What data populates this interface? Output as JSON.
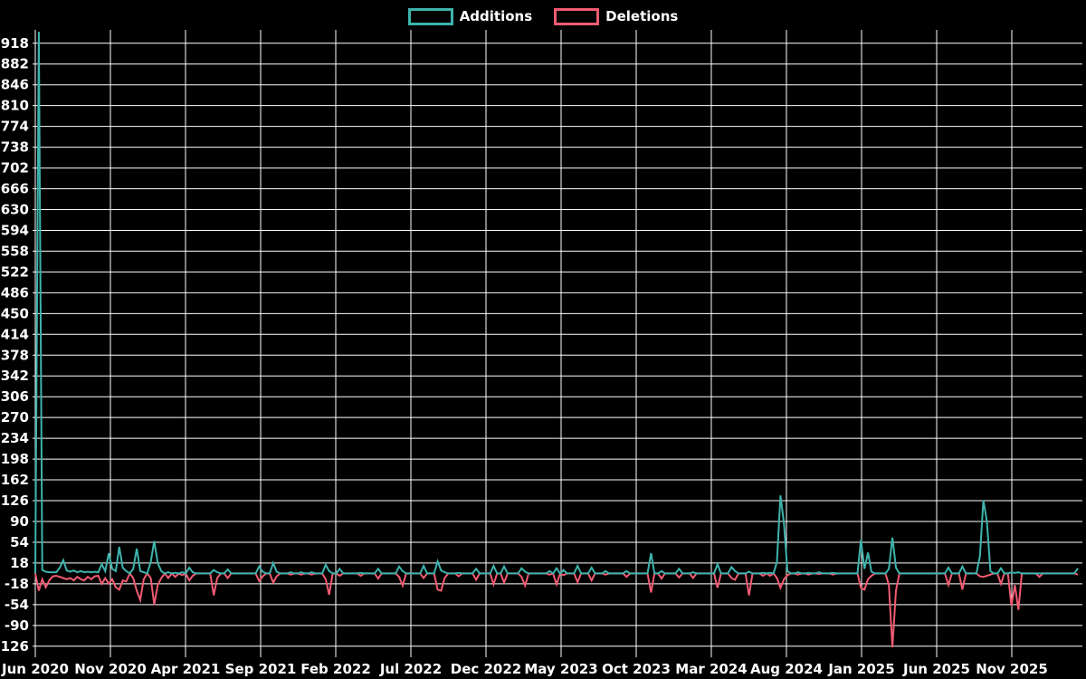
{
  "legend": {
    "additions_label": "Additions",
    "deletions_label": "Deletions"
  },
  "colors": {
    "background": "#000000",
    "grid": "#ffffff",
    "text": "#ffffff",
    "additions": "#3eb3ad",
    "deletions": "#f05b72"
  },
  "chart_data": {
    "type": "line",
    "title": "",
    "xlabel": "",
    "ylabel": "",
    "legend_position": "top",
    "grid": true,
    "x_axis": {
      "unit": "months, weekly data points",
      "start": "Jun 2020",
      "end": "Nov 2025",
      "tick_labels": [
        "Jun 2020",
        "Nov 2020",
        "Apr 2021",
        "Sep 2021",
        "Feb 2022",
        "Jul 2022",
        "Dec 2022",
        "May 2023",
        "Oct 2023",
        "Mar 2024",
        "Aug 2024",
        "Jan 2025",
        "Jun 2025",
        "Nov 2025"
      ]
    },
    "y_axis": {
      "min": -126,
      "max": 918,
      "step": 36,
      "tick_labels": [
        918,
        882,
        846,
        810,
        774,
        738,
        702,
        666,
        630,
        594,
        558,
        522,
        486,
        450,
        414,
        378,
        342,
        306,
        270,
        234,
        198,
        162,
        126,
        90,
        54,
        18,
        -18,
        -54,
        -90,
        -126
      ]
    },
    "weeks_total": 299,
    "default_value": 0,
    "series": [
      {
        "name": "Additions",
        "color": "#3eb3ad",
        "points": [
          [
            1,
            938
          ],
          [
            2,
            6
          ],
          [
            3,
            3
          ],
          [
            4,
            2
          ],
          [
            5,
            2
          ],
          [
            6,
            2
          ],
          [
            7,
            10
          ],
          [
            8,
            23
          ],
          [
            9,
            5
          ],
          [
            10,
            3
          ],
          [
            11,
            5
          ],
          [
            12,
            2
          ],
          [
            13,
            4
          ],
          [
            14,
            2
          ],
          [
            15,
            3
          ],
          [
            16,
            2
          ],
          [
            17,
            3
          ],
          [
            18,
            2
          ],
          [
            19,
            16
          ],
          [
            20,
            4
          ],
          [
            21,
            35
          ],
          [
            22,
            8
          ],
          [
            23,
            4
          ],
          [
            24,
            46
          ],
          [
            25,
            10
          ],
          [
            26,
            4
          ],
          [
            28,
            8
          ],
          [
            29,
            43
          ],
          [
            30,
            4
          ],
          [
            31,
            2
          ],
          [
            33,
            20
          ],
          [
            34,
            56
          ],
          [
            35,
            18
          ],
          [
            36,
            4
          ],
          [
            38,
            2
          ],
          [
            40,
            1
          ],
          [
            42,
            2
          ],
          [
            44,
            10
          ],
          [
            45,
            2
          ],
          [
            51,
            6
          ],
          [
            52,
            2
          ],
          [
            55,
            7
          ],
          [
            64,
            12
          ],
          [
            65,
            3
          ],
          [
            68,
            18
          ],
          [
            69,
            3
          ],
          [
            73,
            2
          ],
          [
            76,
            2
          ],
          [
            79,
            2
          ],
          [
            83,
            15
          ],
          [
            84,
            4
          ],
          [
            87,
            8
          ],
          [
            93,
            1
          ],
          [
            98,
            8
          ],
          [
            104,
            12
          ],
          [
            105,
            4
          ],
          [
            111,
            13
          ],
          [
            115,
            21
          ],
          [
            116,
            5
          ],
          [
            117,
            2
          ],
          [
            121,
            1
          ],
          [
            126,
            8
          ],
          [
            131,
            13
          ],
          [
            134,
            12
          ],
          [
            139,
            9
          ],
          [
            140,
            3
          ],
          [
            147,
            4
          ],
          [
            149,
            9
          ],
          [
            151,
            6
          ],
          [
            155,
            13
          ],
          [
            159,
            10
          ],
          [
            163,
            4
          ],
          [
            169,
            4
          ],
          [
            176,
            35
          ],
          [
            179,
            4
          ],
          [
            184,
            8
          ],
          [
            188,
            2
          ],
          [
            195,
            16
          ],
          [
            199,
            11
          ],
          [
            200,
            4
          ],
          [
            204,
            3
          ],
          [
            208,
            1
          ],
          [
            210,
            1
          ],
          [
            212,
            20
          ],
          [
            213,
            135
          ],
          [
            214,
            86
          ],
          [
            215,
            4
          ],
          [
            218,
            2
          ],
          [
            221,
            1
          ],
          [
            224,
            2
          ],
          [
            228,
            1
          ],
          [
            236,
            58
          ],
          [
            237,
            8
          ],
          [
            238,
            36
          ],
          [
            239,
            3
          ],
          [
            244,
            8
          ],
          [
            245,
            62
          ],
          [
            246,
            10
          ],
          [
            261,
            10
          ],
          [
            265,
            12
          ],
          [
            270,
            30
          ],
          [
            271,
            127
          ],
          [
            272,
            90
          ],
          [
            273,
            4
          ],
          [
            276,
            9
          ],
          [
            279,
            2
          ],
          [
            280,
            1
          ],
          [
            281,
            2
          ],
          [
            298,
            9
          ]
        ]
      },
      {
        "name": "Deletions",
        "color": "#f05b72",
        "points": [
          [
            1,
            -30
          ],
          [
            2,
            -10
          ],
          [
            3,
            -24
          ],
          [
            4,
            -12
          ],
          [
            5,
            -5
          ],
          [
            6,
            -4
          ],
          [
            7,
            -6
          ],
          [
            8,
            -8
          ],
          [
            9,
            -10
          ],
          [
            10,
            -8
          ],
          [
            11,
            -12
          ],
          [
            12,
            -6
          ],
          [
            13,
            -10
          ],
          [
            14,
            -12
          ],
          [
            15,
            -6
          ],
          [
            16,
            -10
          ],
          [
            17,
            -5
          ],
          [
            18,
            -4
          ],
          [
            19,
            -18
          ],
          [
            20,
            -8
          ],
          [
            21,
            -18
          ],
          [
            22,
            -10
          ],
          [
            23,
            -24
          ],
          [
            24,
            -28
          ],
          [
            25,
            -12
          ],
          [
            26,
            -14
          ],
          [
            28,
            -8
          ],
          [
            29,
            -30
          ],
          [
            30,
            -46
          ],
          [
            31,
            -10
          ],
          [
            33,
            -8
          ],
          [
            34,
            -54
          ],
          [
            35,
            -20
          ],
          [
            36,
            -8
          ],
          [
            38,
            -8
          ],
          [
            40,
            -6
          ],
          [
            42,
            -3
          ],
          [
            44,
            -12
          ],
          [
            45,
            -4
          ],
          [
            51,
            -38
          ],
          [
            52,
            -8
          ],
          [
            55,
            -8
          ],
          [
            64,
            -13
          ],
          [
            65,
            -5
          ],
          [
            68,
            -16
          ],
          [
            69,
            -5
          ],
          [
            73,
            -2
          ],
          [
            76,
            -2
          ],
          [
            79,
            -2
          ],
          [
            83,
            -10
          ],
          [
            84,
            -37
          ],
          [
            87,
            -4
          ],
          [
            93,
            -4
          ],
          [
            98,
            -9
          ],
          [
            104,
            -6
          ],
          [
            105,
            -21
          ],
          [
            111,
            -8
          ],
          [
            115,
            -28
          ],
          [
            116,
            -30
          ],
          [
            117,
            -8
          ],
          [
            121,
            -5
          ],
          [
            126,
            -11
          ],
          [
            131,
            -19
          ],
          [
            134,
            -16
          ],
          [
            139,
            -6
          ],
          [
            140,
            -21
          ],
          [
            147,
            -2
          ],
          [
            149,
            -19
          ],
          [
            151,
            -3
          ],
          [
            155,
            -15
          ],
          [
            159,
            -12
          ],
          [
            163,
            -2
          ],
          [
            169,
            -6
          ],
          [
            176,
            -33
          ],
          [
            179,
            -9
          ],
          [
            184,
            -7
          ],
          [
            188,
            -8
          ],
          [
            195,
            -25
          ],
          [
            199,
            -8
          ],
          [
            200,
            -11
          ],
          [
            204,
            -38
          ],
          [
            208,
            -4
          ],
          [
            210,
            -4
          ],
          [
            212,
            -8
          ],
          [
            213,
            -25
          ],
          [
            214,
            -10
          ],
          [
            215,
            -3
          ],
          [
            218,
            -2
          ],
          [
            221,
            -2
          ],
          [
            224,
            -1
          ],
          [
            228,
            -2
          ],
          [
            236,
            -25
          ],
          [
            237,
            -28
          ],
          [
            238,
            -10
          ],
          [
            239,
            -4
          ],
          [
            244,
            -20
          ],
          [
            245,
            -128
          ],
          [
            246,
            -30
          ],
          [
            261,
            -20
          ],
          [
            265,
            -28
          ],
          [
            270,
            -5
          ],
          [
            271,
            -6
          ],
          [
            272,
            -4
          ],
          [
            273,
            -2
          ],
          [
            276,
            -18
          ],
          [
            279,
            -56
          ],
          [
            280,
            -20
          ],
          [
            281,
            -63
          ],
          [
            287,
            -6
          ],
          [
            298,
            -2
          ]
        ]
      }
    ]
  }
}
